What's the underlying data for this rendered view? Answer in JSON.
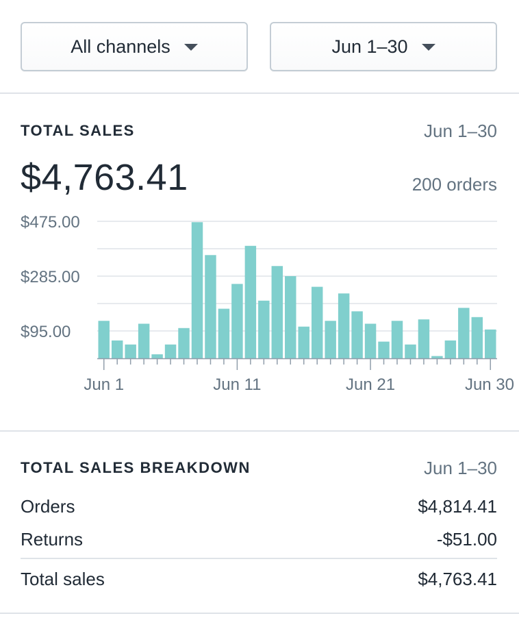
{
  "filters": {
    "channel_label": "All channels",
    "range_label": "Jun 1–30"
  },
  "total_sales": {
    "title": "TOTAL SALES",
    "date_range": "Jun 1–30",
    "amount": "$4,763.41",
    "orders": "200 orders"
  },
  "chart_data": {
    "type": "bar",
    "title": "",
    "xlabel": "",
    "ylabel": "",
    "ylim": [
      0,
      475
    ],
    "y_ticks": [
      "$475.00",
      "$285.00",
      "$95.00"
    ],
    "y_tick_values": [
      475,
      285,
      95
    ],
    "grid": true,
    "bar_color": "#80cfcd",
    "x_tick_labels": [
      "Jun 1",
      "Jun 11",
      "Jun 21",
      "Jun 30"
    ],
    "x_tick_days": [
      1,
      11,
      21,
      30
    ],
    "categories": [
      "Jun 1",
      "Jun 2",
      "Jun 3",
      "Jun 4",
      "Jun 5",
      "Jun 6",
      "Jun 7",
      "Jun 8",
      "Jun 9",
      "Jun 10",
      "Jun 11",
      "Jun 12",
      "Jun 13",
      "Jun 14",
      "Jun 15",
      "Jun 16",
      "Jun 17",
      "Jun 18",
      "Jun 19",
      "Jun 20",
      "Jun 21",
      "Jun 22",
      "Jun 23",
      "Jun 24",
      "Jun 25",
      "Jun 26",
      "Jun 27",
      "Jun 28",
      "Jun 29",
      "Jun 30"
    ],
    "values": [
      130,
      62,
      48,
      120,
      14,
      48,
      105,
      472,
      358,
      172,
      258,
      390,
      200,
      320,
      285,
      110,
      248,
      130,
      225,
      163,
      120,
      58,
      130,
      48,
      135,
      8,
      62,
      175,
      143,
      100
    ]
  },
  "breakdown": {
    "title": "TOTAL SALES BREAKDOWN",
    "date_range": "Jun 1–30",
    "rows": [
      {
        "label": "Orders",
        "value": "$4,814.41"
      },
      {
        "label": "Returns",
        "value": "-$51.00"
      },
      {
        "label": "Total sales",
        "value": "$4,763.41"
      }
    ]
  }
}
